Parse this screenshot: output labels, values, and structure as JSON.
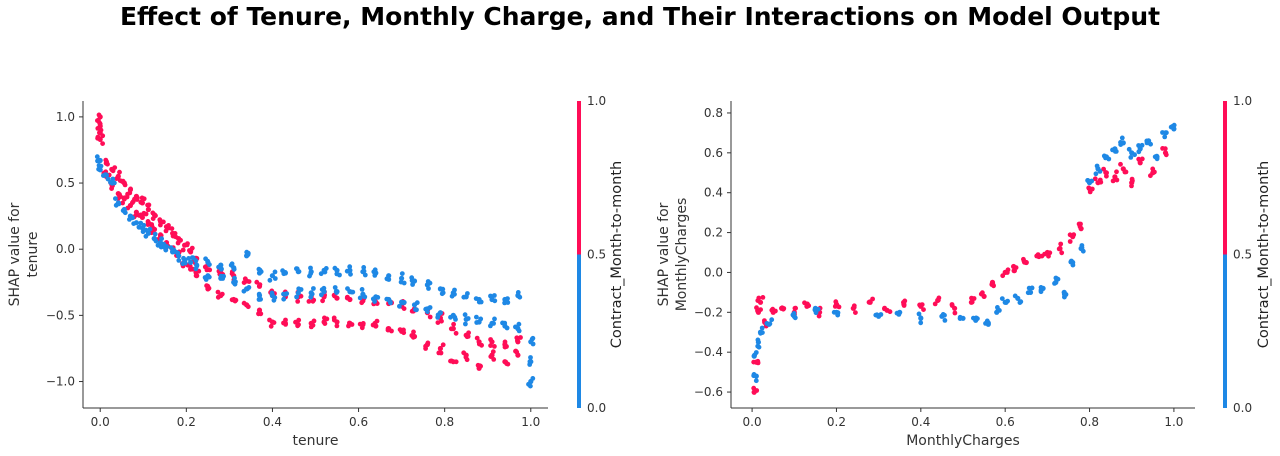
{
  "title": "Effect of Tenure, Monthly Charge, and Their Interactions on Model Output",
  "colors": {
    "low": "#1E88E5",
    "high": "#FF0D57",
    "axis": "#333333"
  },
  "chart_data": [
    {
      "type": "scatter",
      "feature": "tenure",
      "xlabel": "tenure",
      "ylabel": [
        "SHAP value for",
        "tenure"
      ],
      "xlim": [
        -0.04,
        1.04
      ],
      "ylim": [
        -1.2,
        1.12
      ],
      "xticks": [
        0.0,
        0.2,
        0.4,
        0.6,
        0.8,
        1.0
      ],
      "xtick_labels": [
        "0.0",
        "0.2",
        "0.4",
        "0.6",
        "0.8",
        "1.0"
      ],
      "yticks": [
        1.0,
        0.5,
        0.0,
        -0.5,
        -1.0
      ],
      "ytick_labels": [
        "1.0",
        "0.5",
        "0.0",
        "−0.5",
        "−1.0"
      ],
      "color_feature": "Contract_Month-to-month",
      "colorbar_ticks": [
        "1.0",
        "0.5",
        "0.0"
      ],
      "series": [
        {
          "name": "1.0",
          "color": "#FF0D57",
          "points": [
            [
              0.0,
              0.83
            ],
            [
              0.0,
              0.88
            ],
            [
              0.0,
              0.93
            ],
            [
              0.0,
              1.0
            ],
            [
              0.014,
              0.65
            ],
            [
              0.014,
              0.55
            ],
            [
              0.028,
              0.6
            ],
            [
              0.028,
              0.48
            ],
            [
              0.042,
              0.55
            ],
            [
              0.042,
              0.42
            ],
            [
              0.056,
              0.5
            ],
            [
              0.056,
              0.38
            ],
            [
              0.07,
              0.45
            ],
            [
              0.07,
              0.33
            ],
            [
              0.084,
              0.4
            ],
            [
              0.084,
              0.28
            ],
            [
              0.098,
              0.35
            ],
            [
              0.098,
              0.24
            ],
            [
              0.112,
              0.3
            ],
            [
              0.112,
              0.2
            ],
            [
              0.126,
              0.26
            ],
            [
              0.126,
              0.15
            ],
            [
              0.14,
              0.21
            ],
            [
              0.14,
              0.1
            ],
            [
              0.154,
              0.17
            ],
            [
              0.154,
              0.05
            ],
            [
              0.168,
              0.12
            ],
            [
              0.168,
              0.0
            ],
            [
              0.182,
              0.08
            ],
            [
              0.182,
              -0.05
            ],
            [
              0.196,
              0.03
            ],
            [
              0.196,
              -0.1
            ],
            [
              0.21,
              -0.02
            ],
            [
              0.21,
              -0.15
            ],
            [
              0.224,
              -0.07
            ],
            [
              0.224,
              -0.2
            ],
            [
              0.25,
              -0.12
            ],
            [
              0.25,
              -0.3
            ],
            [
              0.28,
              -0.16
            ],
            [
              0.28,
              -0.35
            ],
            [
              0.31,
              -0.2
            ],
            [
              0.31,
              -0.38
            ],
            [
              0.34,
              -0.24
            ],
            [
              0.34,
              -0.42
            ],
            [
              0.37,
              -0.28
            ],
            [
              0.37,
              -0.46
            ],
            [
              0.4,
              -0.35
            ],
            [
              0.4,
              -0.55
            ],
            [
              0.43,
              -0.36
            ],
            [
              0.43,
              -0.56
            ],
            [
              0.46,
              -0.36
            ],
            [
              0.46,
              -0.57
            ],
            [
              0.49,
              -0.36
            ],
            [
              0.49,
              -0.56
            ],
            [
              0.52,
              -0.36
            ],
            [
              0.52,
              -0.55
            ],
            [
              0.55,
              -0.37
            ],
            [
              0.55,
              -0.55
            ],
            [
              0.58,
              -0.38
            ],
            [
              0.58,
              -0.56
            ],
            [
              0.61,
              -0.39
            ],
            [
              0.61,
              -0.57
            ],
            [
              0.64,
              -0.4
            ],
            [
              0.64,
              -0.58
            ],
            [
              0.67,
              -0.41
            ],
            [
              0.67,
              -0.6
            ],
            [
              0.7,
              -0.43
            ],
            [
              0.7,
              -0.62
            ],
            [
              0.73,
              -0.45
            ],
            [
              0.73,
              -0.66
            ],
            [
              0.76,
              -0.48
            ],
            [
              0.76,
              -0.72
            ],
            [
              0.79,
              -0.52
            ],
            [
              0.79,
              -0.75
            ],
            [
              0.82,
              -0.6
            ],
            [
              0.82,
              -0.85
            ],
            [
              0.85,
              -0.65
            ],
            [
              0.85,
              -0.8
            ],
            [
              0.88,
              -0.7
            ],
            [
              0.88,
              -0.9
            ],
            [
              0.91,
              -0.7
            ],
            [
              0.91,
              -0.8
            ],
            [
              0.94,
              -0.72
            ],
            [
              0.94,
              -0.85
            ],
            [
              0.97,
              -0.7
            ],
            [
              0.97,
              -0.8
            ]
          ]
        },
        {
          "name": "0.0",
          "color": "#1E88E5",
          "points": [
            [
              0.0,
              0.6
            ],
            [
              0.0,
              0.67
            ],
            [
              0.014,
              0.56
            ],
            [
              0.028,
              0.5
            ],
            [
              0.042,
              0.35
            ],
            [
              0.056,
              0.3
            ],
            [
              0.07,
              0.25
            ],
            [
              0.084,
              0.2
            ],
            [
              0.098,
              0.16
            ],
            [
              0.112,
              0.12
            ],
            [
              0.126,
              0.08
            ],
            [
              0.14,
              0.05
            ],
            [
              0.154,
              0.02
            ],
            [
              0.168,
              -0.02
            ],
            [
              0.182,
              -0.05
            ],
            [
              0.196,
              -0.08
            ],
            [
              0.21,
              -0.1
            ],
            [
              0.224,
              -0.12
            ],
            [
              0.25,
              -0.1
            ],
            [
              0.25,
              -0.2
            ],
            [
              0.28,
              -0.12
            ],
            [
              0.28,
              -0.22
            ],
            [
              0.31,
              -0.14
            ],
            [
              0.31,
              -0.25
            ],
            [
              0.34,
              -0.05
            ],
            [
              0.34,
              -0.3
            ],
            [
              0.37,
              -0.18
            ],
            [
              0.37,
              -0.35
            ],
            [
              0.4,
              -0.2
            ],
            [
              0.4,
              -0.35
            ],
            [
              0.43,
              -0.18
            ],
            [
              0.43,
              -0.34
            ],
            [
              0.46,
              -0.17
            ],
            [
              0.46,
              -0.33
            ],
            [
              0.49,
              -0.17
            ],
            [
              0.49,
              -0.33
            ],
            [
              0.52,
              -0.16
            ],
            [
              0.52,
              -0.32
            ],
            [
              0.55,
              -0.16
            ],
            [
              0.55,
              -0.32
            ],
            [
              0.58,
              -0.16
            ],
            [
              0.58,
              -0.32
            ],
            [
              0.61,
              -0.17
            ],
            [
              0.61,
              -0.34
            ],
            [
              0.64,
              -0.18
            ],
            [
              0.64,
              -0.36
            ],
            [
              0.67,
              -0.2
            ],
            [
              0.67,
              -0.38
            ],
            [
              0.7,
              -0.22
            ],
            [
              0.7,
              -0.4
            ],
            [
              0.73,
              -0.24
            ],
            [
              0.73,
              -0.42
            ],
            [
              0.76,
              -0.27
            ],
            [
              0.76,
              -0.45
            ],
            [
              0.79,
              -0.3
            ],
            [
              0.79,
              -0.48
            ],
            [
              0.82,
              -0.33
            ],
            [
              0.82,
              -0.5
            ],
            [
              0.85,
              -0.36
            ],
            [
              0.85,
              -0.53
            ],
            [
              0.88,
              -0.38
            ],
            [
              0.88,
              -0.55
            ],
            [
              0.91,
              -0.38
            ],
            [
              0.91,
              -0.56
            ],
            [
              0.94,
              -0.38
            ],
            [
              0.94,
              -0.58
            ],
            [
              0.97,
              -0.35
            ],
            [
              0.97,
              -0.6
            ],
            [
              1.0,
              -0.7
            ],
            [
              1.0,
              -0.85
            ],
            [
              1.0,
              -1.0
            ]
          ]
        }
      ]
    },
    {
      "type": "scatter",
      "feature": "MonthlyCharges",
      "xlabel": "MonthlyCharges",
      "ylabel": [
        "SHAP value for",
        "MonthlyCharges"
      ],
      "xlim": [
        -0.05,
        1.05
      ],
      "ylim": [
        -0.68,
        0.86
      ],
      "xticks": [
        0.0,
        0.2,
        0.4,
        0.6,
        0.8,
        1.0
      ],
      "xtick_labels": [
        "0.0",
        "0.2",
        "0.4",
        "0.6",
        "0.8",
        "1.0"
      ],
      "yticks": [
        0.8,
        0.6,
        0.4,
        0.2,
        0.0,
        -0.2,
        -0.4,
        -0.6
      ],
      "ytick_labels": [
        "0.8",
        "0.6",
        "0.4",
        "0.2",
        "0.0",
        "−0.2",
        "−0.4",
        "−0.6"
      ],
      "color_feature": "Contract_Month-to-month",
      "colorbar_ticks": [
        "1.0",
        "0.5",
        "0.0"
      ],
      "series": [
        {
          "name": "1.0",
          "color": "#FF0D57",
          "points": [
            [
              0.005,
              -0.6
            ],
            [
              0.01,
              -0.45
            ],
            [
              0.015,
              -0.2
            ],
            [
              0.02,
              -0.15
            ],
            [
              0.03,
              -0.25
            ],
            [
              0.05,
              -0.2
            ],
            [
              0.07,
              -0.18
            ],
            [
              0.1,
              -0.2
            ],
            [
              0.13,
              -0.17
            ],
            [
              0.16,
              -0.2
            ],
            [
              0.2,
              -0.16
            ],
            [
              0.24,
              -0.18
            ],
            [
              0.28,
              -0.15
            ],
            [
              0.32,
              -0.19
            ],
            [
              0.36,
              -0.16
            ],
            [
              0.4,
              -0.17
            ],
            [
              0.44,
              -0.14
            ],
            [
              0.48,
              -0.18
            ],
            [
              0.52,
              -0.15
            ],
            [
              0.55,
              -0.12
            ],
            [
              0.57,
              -0.05
            ],
            [
              0.6,
              0.0
            ],
            [
              0.62,
              0.03
            ],
            [
              0.65,
              0.05
            ],
            [
              0.68,
              0.08
            ],
            [
              0.7,
              0.1
            ],
            [
              0.73,
              0.12
            ],
            [
              0.76,
              0.18
            ],
            [
              0.78,
              0.22
            ],
            [
              0.8,
              0.42
            ],
            [
              0.82,
              0.45
            ],
            [
              0.84,
              0.5
            ],
            [
              0.86,
              0.48
            ],
            [
              0.88,
              0.52
            ],
            [
              0.9,
              0.45
            ],
            [
              0.92,
              0.55
            ],
            [
              0.95,
              0.5
            ],
            [
              0.98,
              0.6
            ]
          ]
        },
        {
          "name": "0.0",
          "color": "#1E88E5",
          "points": [
            [
              0.005,
              -0.42
            ],
            [
              0.01,
              -0.52
            ],
            [
              0.015,
              -0.35
            ],
            [
              0.02,
              -0.3
            ],
            [
              0.04,
              -0.26
            ],
            [
              0.1,
              -0.22
            ],
            [
              0.15,
              -0.18
            ],
            [
              0.2,
              -0.2
            ],
            [
              0.3,
              -0.22
            ],
            [
              0.35,
              -0.2
            ],
            [
              0.4,
              -0.23
            ],
            [
              0.45,
              -0.22
            ],
            [
              0.5,
              -0.23
            ],
            [
              0.53,
              -0.24
            ],
            [
              0.56,
              -0.26
            ],
            [
              0.58,
              -0.2
            ],
            [
              0.6,
              -0.15
            ],
            [
              0.63,
              -0.13
            ],
            [
              0.66,
              -0.1
            ],
            [
              0.69,
              -0.08
            ],
            [
              0.72,
              -0.05
            ],
            [
              0.74,
              -0.1
            ],
            [
              0.76,
              0.05
            ],
            [
              0.78,
              0.12
            ],
            [
              0.8,
              0.45
            ],
            [
              0.82,
              0.52
            ],
            [
              0.84,
              0.58
            ],
            [
              0.86,
              0.62
            ],
            [
              0.88,
              0.65
            ],
            [
              0.9,
              0.6
            ],
            [
              0.92,
              0.62
            ],
            [
              0.94,
              0.66
            ],
            [
              0.96,
              0.58
            ],
            [
              0.98,
              0.7
            ],
            [
              1.0,
              0.72
            ]
          ]
        }
      ]
    }
  ]
}
